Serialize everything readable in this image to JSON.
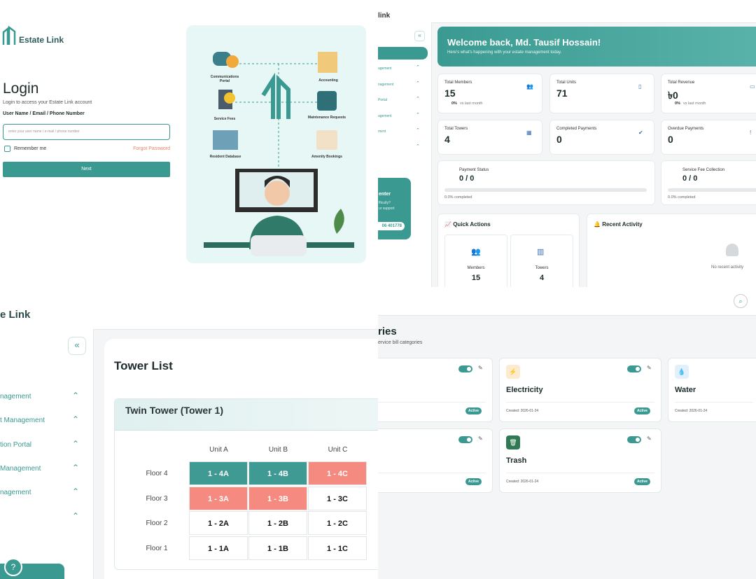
{
  "login": {
    "brand": "Estate Link",
    "title": "Login",
    "subtitle": "Login to access your Estate Link account",
    "field_label": "User Name / Email / Phone Number",
    "placeholder": "enter your user name / e-mail / phone number",
    "remember": "Remember me",
    "forgot": "Forgot Password",
    "button": "Next",
    "illustration": [
      "Communications Portal",
      "Accounting",
      "Service Fees",
      "Maintenance Requests",
      "Resident Database",
      "Amenity Bookings"
    ]
  },
  "dashboard": {
    "brand": "link",
    "sidebar": [
      "agement",
      "nagement",
      "Portal",
      "agement",
      "ment"
    ],
    "support": [
      "enter",
      "fficulty?",
      "ur support",
      "06 401778"
    ],
    "welcome": "Welcome back, Md. Tausif Hossain!",
    "welcome_sub": "Here's what's happening with your estate management today.",
    "stats": [
      {
        "label": "Total Members",
        "value": 15,
        "change": "0%",
        "change_text": "vs last month"
      },
      {
        "label": "Total Units",
        "value": 71
      },
      {
        "label": "Total Revenue",
        "value": "৳0",
        "change": "0%",
        "change_text": "vs last month"
      },
      {
        "label": "Total Towers",
        "value": 4
      },
      {
        "label": "Completed Payments",
        "value": 0
      },
      {
        "label": "Overdue Payments",
        "value": 0
      }
    ],
    "progress": [
      {
        "label": "Payment Status",
        "value": "0 / 0",
        "note": "0.0% completed"
      },
      {
        "label": "Service Fee Collection",
        "value": "0 / 0",
        "note": "0.0% completed"
      }
    ],
    "quick_actions": {
      "title": "Quick Actions",
      "items": [
        {
          "label": "Members",
          "value": 15
        },
        {
          "label": "Towers",
          "value": 4
        }
      ]
    },
    "recent": {
      "title": "Recent Activity",
      "empty": "No recent activity"
    }
  },
  "towers": {
    "brand": "e Link",
    "sidebar": [
      "nagement",
      "t Management",
      "tion Portal",
      " Management",
      "nagement"
    ],
    "title": "Tower List",
    "tower": "Twin Tower (Tower 1)",
    "columns": [
      "Unit A",
      "Unit B",
      "Unit C"
    ],
    "rows": [
      {
        "floor": "Floor 4",
        "cells": [
          {
            "label": "1 - 4A",
            "color": "#3f9a94"
          },
          {
            "label": "1 - 4B",
            "color": "#3f9a94"
          },
          {
            "label": "1 - 4C",
            "color": "#f58a80"
          }
        ]
      },
      {
        "floor": "Floor 3",
        "cells": [
          {
            "label": "1 - 3A",
            "color": "#f58a80"
          },
          {
            "label": "1 - 3B",
            "color": "#f58a80"
          },
          {
            "label": "1 - 3C",
            "color": "#ffffff"
          }
        ]
      },
      {
        "floor": "Floor 2",
        "cells": [
          {
            "label": "1 - 2A",
            "color": "#ffffff"
          },
          {
            "label": "1 - 2B",
            "color": "#ffffff"
          },
          {
            "label": "1 - 2C",
            "color": "#ffffff"
          }
        ]
      },
      {
        "floor": "Floor 1",
        "cells": [
          {
            "label": "1 - 1A",
            "color": "#ffffff"
          },
          {
            "label": "1 - 1B",
            "color": "#ffffff"
          },
          {
            "label": "1 - 1C",
            "color": "#ffffff"
          }
        ]
      }
    ]
  },
  "categories": {
    "title": "ries",
    "subtitle": "ervice bill categories",
    "cards": [
      {
        "status": "Active"
      },
      {
        "name": "Electricity",
        "created": "Created: 2026-01-24",
        "status": "Active"
      },
      {
        "name": "Water",
        "created": "Created: 2026-01-24"
      },
      {
        "status": "Active"
      },
      {
        "name": "Trash",
        "created": "Created: 2026-01-24",
        "status": "Active"
      }
    ]
  }
}
